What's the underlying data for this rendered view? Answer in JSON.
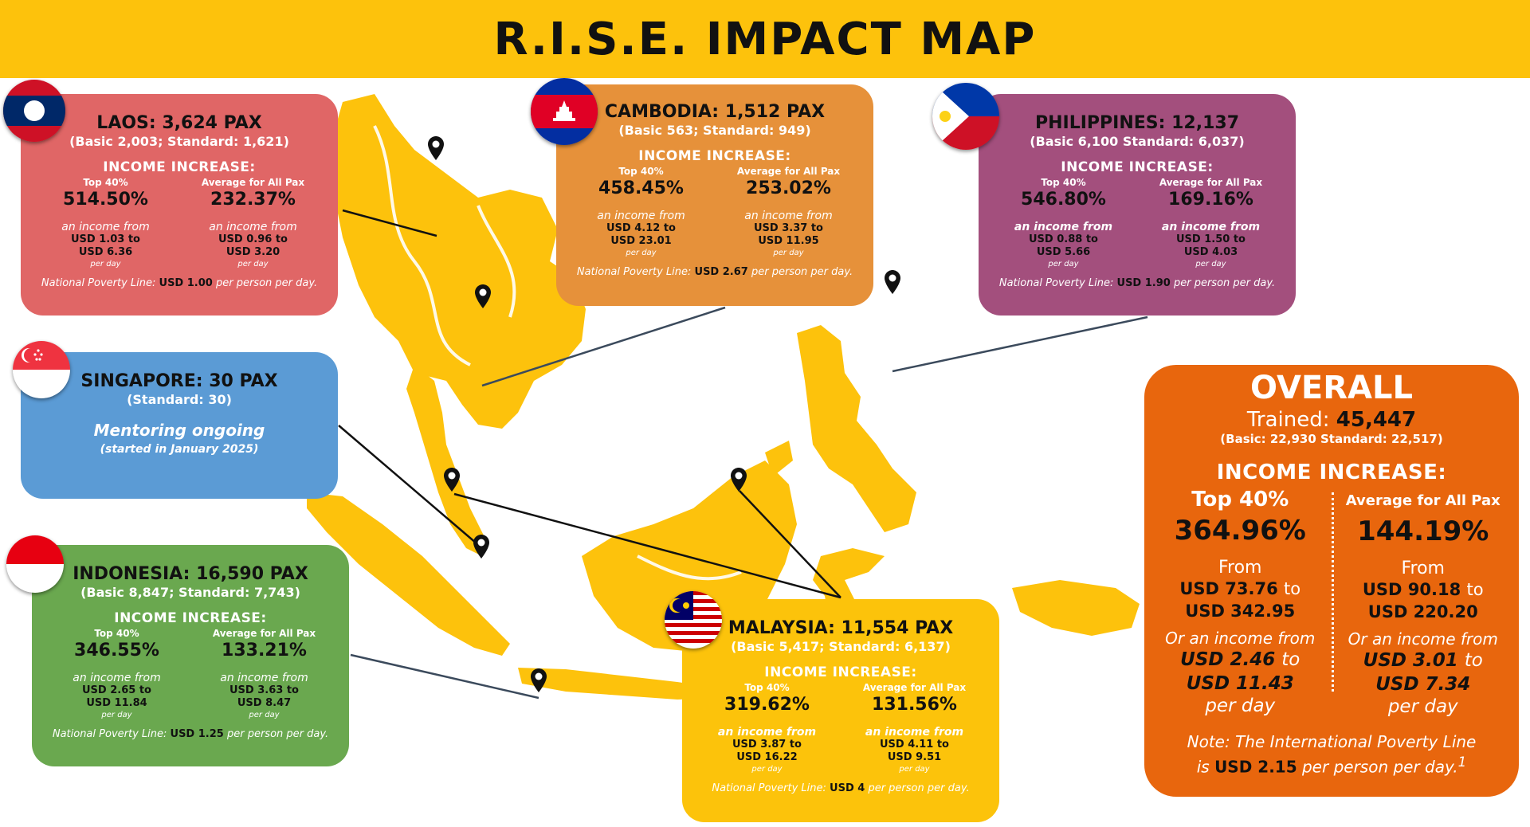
{
  "title": "R.I.S.E. IMPACT MAP",
  "colors": {
    "banner": "#fdc20c",
    "map_land": "#fdc20c",
    "laos": "#e06666",
    "cambodia": "#e6913a",
    "philippines": "#a34f7d",
    "singapore": "#5b9bd5",
    "indonesia": "#6aa84f",
    "malaysia": "#fcc30b",
    "overall": "#e8660d"
  },
  "countries": {
    "laos": {
      "title": "LAOS: 3,624 PAX",
      "subtitle": "(Basic 2,003; Standard: 1,621)",
      "income_label": "INCOME INCREASE:",
      "top_label": "Top 40%",
      "top_pct": "514.50%",
      "top_from": "an income from",
      "top_range_a": "USD 1.03 to",
      "top_range_b": "USD 6.36",
      "top_pd": "per day",
      "avg_label": "Average for All Pax",
      "avg_pct": "232.37%",
      "avg_from": "an income from",
      "avg_range_a": "USD 0.96 to",
      "avg_range_b": "USD 3.20",
      "avg_pd": "per day",
      "npl_prefix": "National  Poverty Line:",
      "npl_value": "USD 1.00",
      "npl_suffix": "per person per day."
    },
    "cambodia": {
      "title": "CAMBODIA: 1,512 PAX",
      "subtitle": "(Basic 563; Standard: 949)",
      "income_label": "INCOME INCREASE:",
      "top_label": "Top 40%",
      "top_pct": "458.45%",
      "top_from": "an income from",
      "top_range_a": "USD 4.12 to",
      "top_range_b": "USD 23.01",
      "top_pd": "per day",
      "avg_label": "Average for All Pax",
      "avg_pct": "253.02%",
      "avg_from": "an income from",
      "avg_range_a": "USD 3.37 to",
      "avg_range_b": "USD 11.95",
      "avg_pd": "per day",
      "npl_prefix": "National  Poverty Line:",
      "npl_value": "USD 2.67",
      "npl_suffix": "per person per day."
    },
    "philippines": {
      "title": "PHILIPPINES: 12,137",
      "subtitle": "(Basic 6,100 Standard: 6,037)",
      "income_label": "INCOME INCREASE:",
      "top_label": "Top 40%",
      "top_pct": "546.80%",
      "top_from": "an income from",
      "top_range_a": "USD 0.88 to",
      "top_range_b": "USD 5.66",
      "top_pd": "per day",
      "avg_label": "Average for All Pax",
      "avg_pct": "169.16%",
      "avg_from": "an income from",
      "avg_range_a": "USD 1.50 to",
      "avg_range_b": "USD 4.03",
      "avg_pd": "per day",
      "npl_prefix": "National  Poverty Line:",
      "npl_value": "USD 1.90",
      "npl_suffix": "per person per day."
    },
    "singapore": {
      "title": "SINGAPORE: 30 PAX",
      "subtitle": "(Standard: 30)",
      "note": "Mentoring ongoing",
      "note_sub": "(started in January 2025)"
    },
    "indonesia": {
      "title": "INDONESIA: 16,590 PAX",
      "subtitle": "(Basic 8,847; Standard: 7,743)",
      "income_label": "INCOME INCREASE:",
      "top_label": "Top 40%",
      "top_pct": "346.55%",
      "top_from": "an income from",
      "top_range_a": "USD 2.65 to",
      "top_range_b": "USD 11.84",
      "top_pd": "per day",
      "avg_label": "Average for All Pax",
      "avg_pct": "133.21%",
      "avg_from": "an income from",
      "avg_range_a": "USD 3.63 to",
      "avg_range_b": "USD 8.47",
      "avg_pd": "per day",
      "npl_prefix": "National  Poverty Line:",
      "npl_value": "USD 1.25",
      "npl_suffix": "per person per day."
    },
    "malaysia": {
      "title": "MALAYSIA: 11,554 PAX",
      "subtitle": "(Basic 5,417; Standard: 6,137)",
      "income_label": "INCOME INCREASE:",
      "top_label": "Top 40%",
      "top_pct": "319.62%",
      "top_from": "an income from",
      "top_range_a": "USD 3.87 to",
      "top_range_b": "USD 16.22",
      "top_pd": "per day",
      "avg_label": "Average for All Pax",
      "avg_pct": "131.56%",
      "avg_from": "an income from",
      "avg_range_a": "USD 4.11 to",
      "avg_range_b": "USD 9.51",
      "avg_pd": "per day",
      "npl_prefix": "National  Poverty Line:",
      "npl_value": "USD 4",
      "npl_suffix": "per person per day."
    }
  },
  "overall": {
    "title": "OVERALL",
    "trained_label": "Trained:",
    "trained_value": "45,447",
    "breakdown": "(Basic: 22,930 Standard: 22,517)",
    "income_label": "INCOME INCREASE:",
    "top_label": "Top 40%",
    "top_pct": "364.96%",
    "top_from": "From",
    "top_range_a": "USD 73.76",
    "top_range_to": "to",
    "top_range_b": "USD 342.95",
    "top_alt": "Or an income from",
    "top_alt_a": "USD 2.46",
    "top_alt_to": "to",
    "top_alt_b": "USD 11.43",
    "top_pd": "per day",
    "avg_label": "Average for All Pax",
    "avg_pct": "144.19%",
    "avg_from": "From",
    "avg_range_a": "USD 90.18",
    "avg_range_to": "to",
    "avg_range_b": "USD 220.20",
    "avg_alt": "Or an income from",
    "avg_alt_a": "USD 3.01",
    "avg_alt_to": "to",
    "avg_alt_b": "USD 7.34",
    "avg_pd": "per day",
    "note_prefix": "Note: The International Poverty Line",
    "note_is": "is",
    "note_value": "USD 2.15",
    "note_suffix": "per person per day.",
    "note_ref": "1"
  }
}
